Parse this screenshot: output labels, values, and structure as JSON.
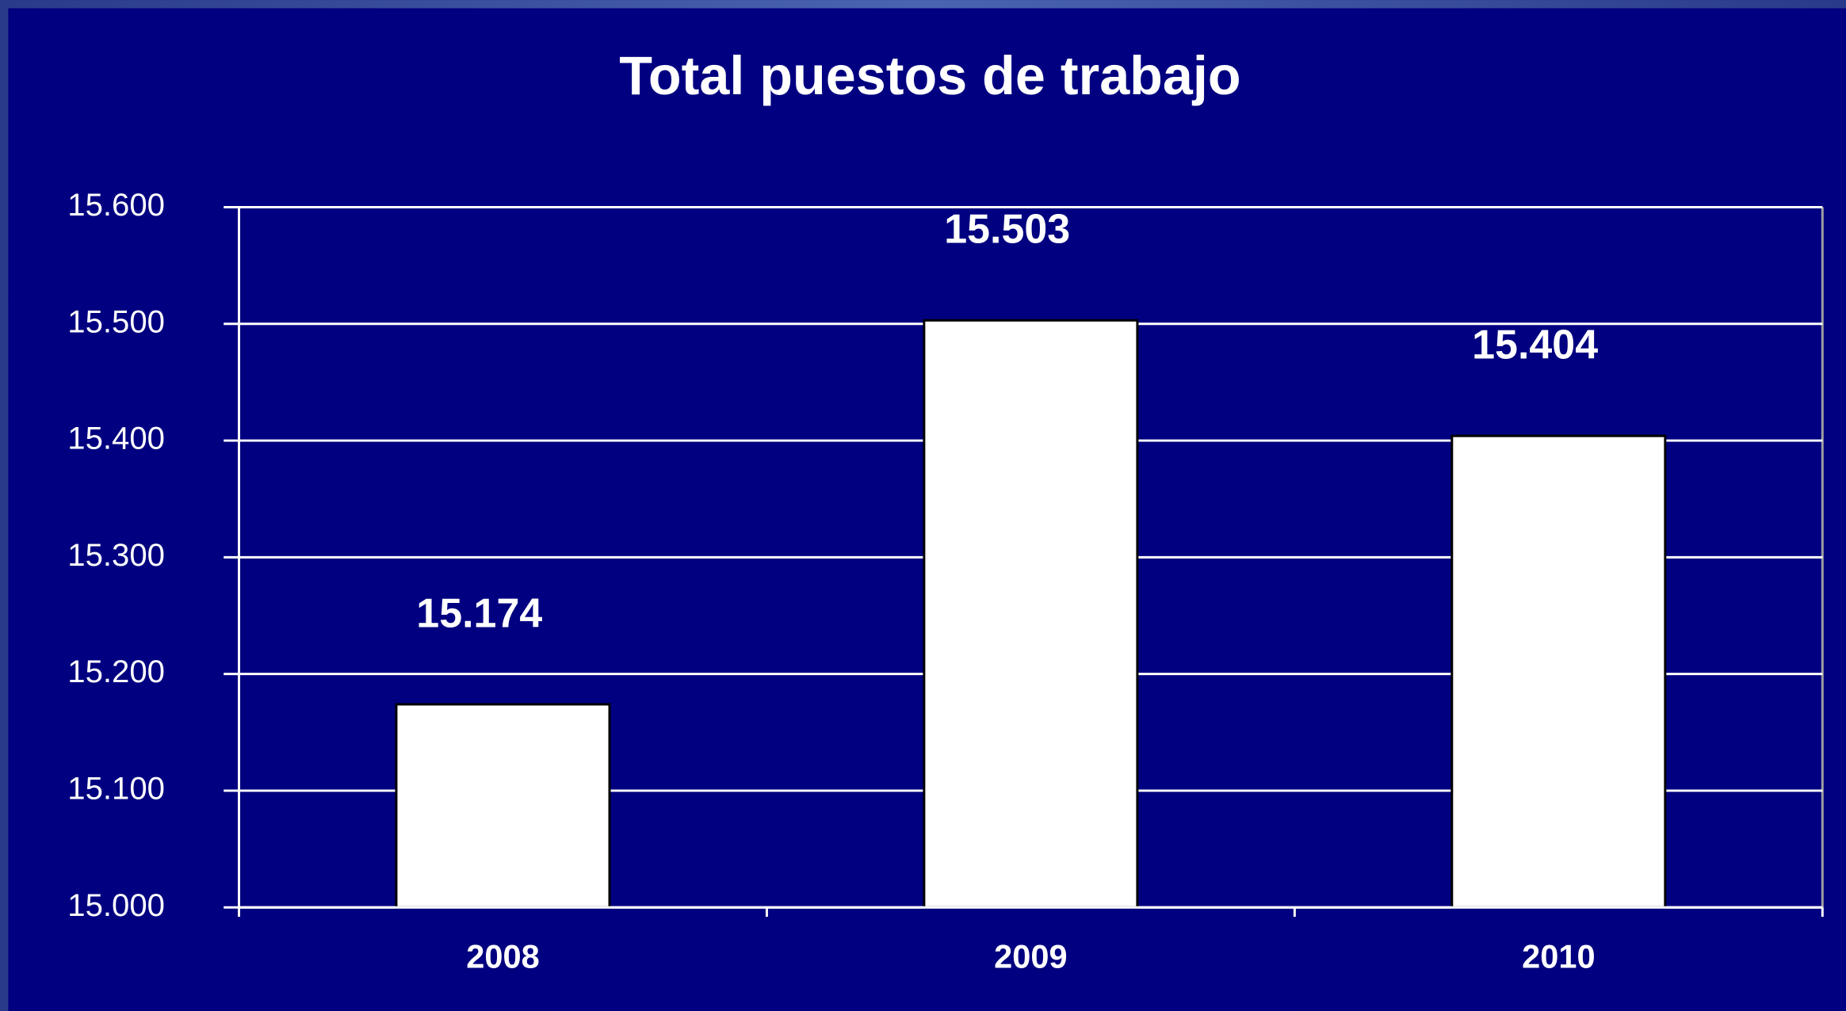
{
  "chart_data": {
    "type": "bar",
    "title": "Total puestos de trabajo",
    "categories": [
      "2008",
      "2009",
      "2010"
    ],
    "values": [
      15174,
      15503,
      15404
    ],
    "value_labels": [
      "15.174",
      "15.503",
      "15.404"
    ],
    "color": "#ffffff",
    "ylim": [
      15000,
      15600
    ],
    "yticks": [
      {
        "value": 15000,
        "label": "15.000"
      },
      {
        "value": 15100,
        "label": "15.100"
      },
      {
        "value": 15200,
        "label": "15.200"
      },
      {
        "value": 15300,
        "label": "15.300"
      },
      {
        "value": 15400,
        "label": "15.400"
      },
      {
        "value": 15500,
        "label": "15.500"
      },
      {
        "value": 15600,
        "label": "15.600"
      }
    ],
    "grid": true
  }
}
